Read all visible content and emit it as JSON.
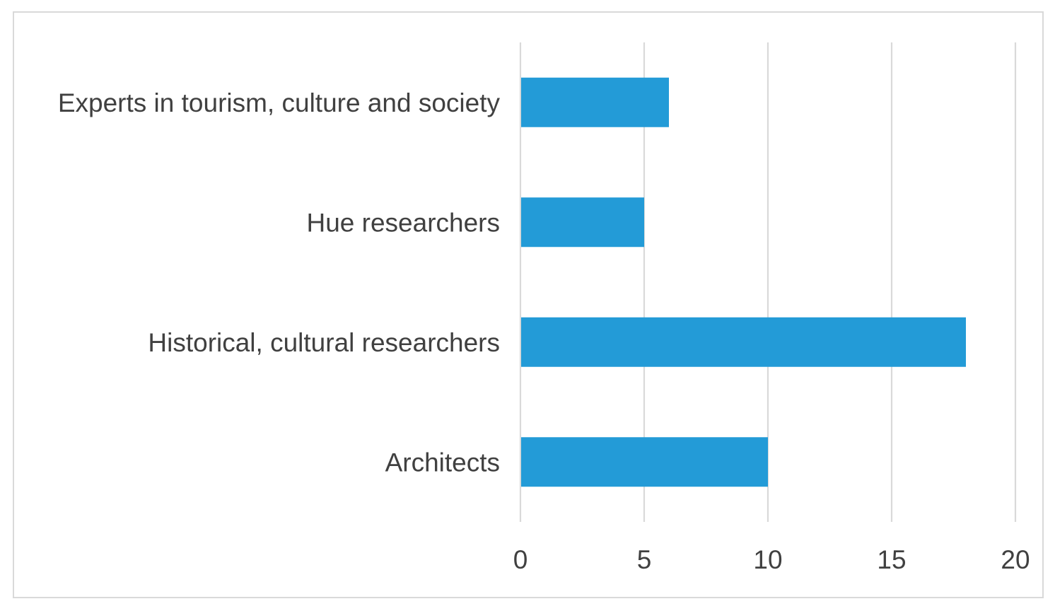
{
  "chart_data": {
    "type": "bar",
    "orientation": "horizontal",
    "categories": [
      "Experts in tourism, culture and society",
      "Hue researchers",
      "Historical, cultural researchers",
      "Architects"
    ],
    "values": [
      6,
      5,
      18,
      10
    ],
    "title": "",
    "xlabel": "",
    "ylabel": "",
    "xlim": [
      0,
      20
    ],
    "ticks": [
      0,
      5,
      10,
      15,
      20
    ],
    "tick_labels": [
      "0",
      "5",
      "10",
      "15",
      "20"
    ],
    "grid": true,
    "legend": "none",
    "bar_color": "#239bd7",
    "grid_color": "#d9d9d9"
  }
}
